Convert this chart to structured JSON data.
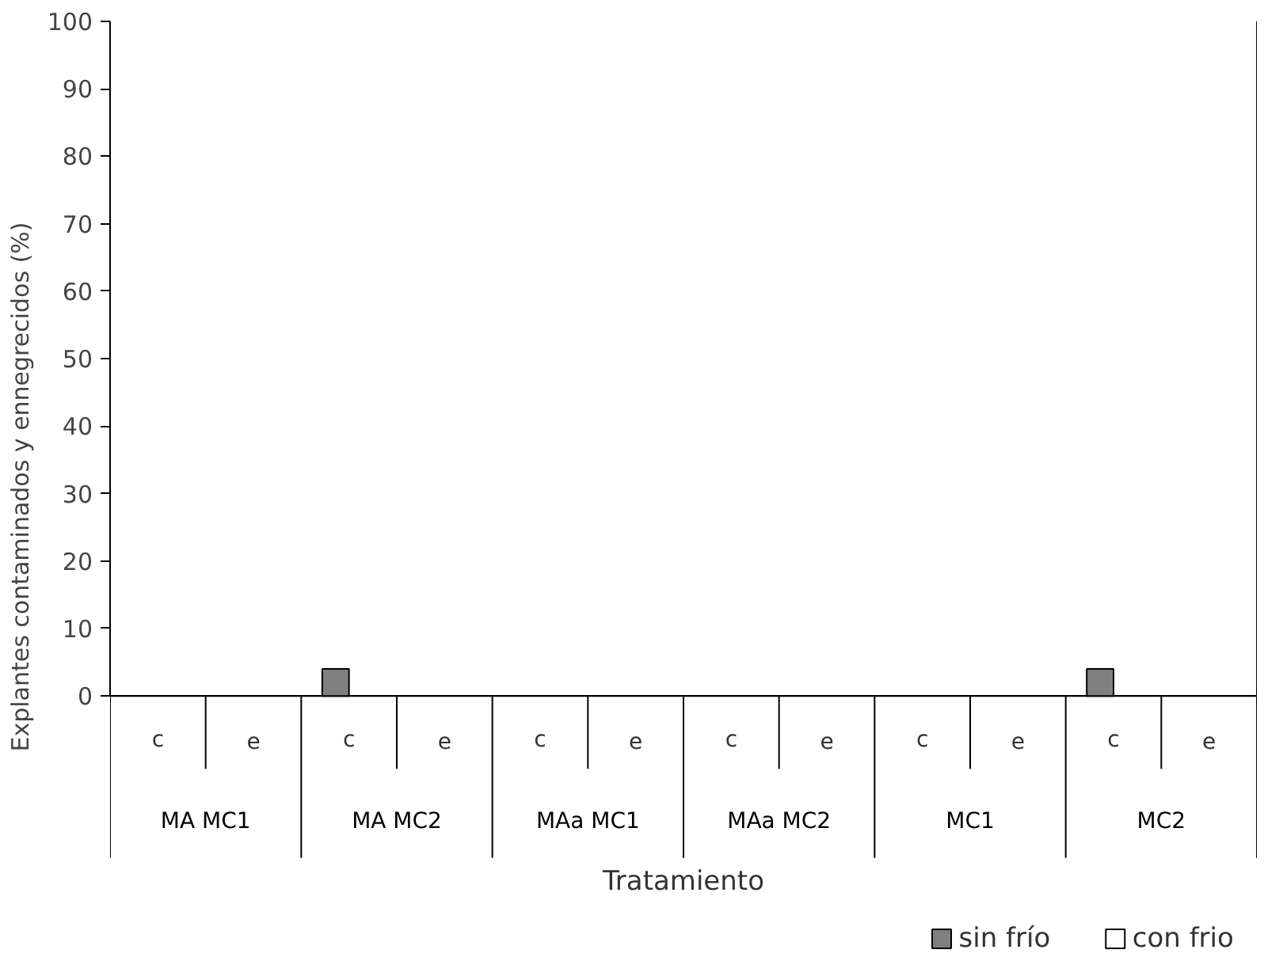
{
  "chart_data": {
    "type": "bar",
    "xlabel": "Tratamiento",
    "ylabel": "Explantes contaminados y ennegrecidos (%)",
    "categories": [
      "c",
      "e",
      "c",
      "e",
      "c",
      "e",
      "c",
      "e",
      "c",
      "e",
      "c",
      "e"
    ],
    "annotations": [
      "MA MC1",
      "MA MC2",
      "MAa MC1",
      "MAa MC2",
      "MC1",
      "MC2"
    ],
    "series": [
      {
        "name": "sin frío",
        "color": "#808080",
        "values": [
          0,
          0,
          4,
          0,
          0,
          0,
          0,
          0,
          0,
          0,
          4,
          0
        ]
      },
      {
        "name": "con frio",
        "color": "#ffffff",
        "values": [
          0,
          0,
          0,
          0,
          0,
          0,
          0,
          0,
          0,
          0,
          0,
          0
        ]
      }
    ],
    "ylim": [
      0,
      100
    ],
    "yticks": [
      0,
      10,
      20,
      30,
      40,
      50,
      60,
      70,
      80,
      90,
      100
    ],
    "grid": false,
    "legend": "bottom right"
  }
}
